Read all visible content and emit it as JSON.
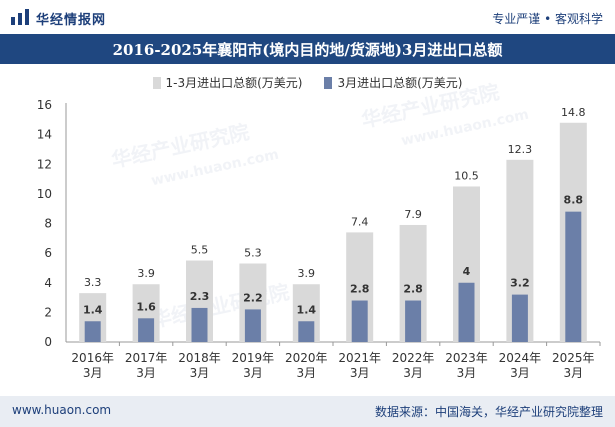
{
  "header": {
    "brand": "华经情报网",
    "slogan": "专业严谨 • 客观科学"
  },
  "watermarks": [
    "华经产业研究院",
    "www.huaon.com"
  ],
  "chart_data": {
    "type": "bar",
    "title": "2016-2025年襄阳市(境内目的地/货源地)3月进出口总额",
    "categories": [
      "2016年3月",
      "2017年3月",
      "2018年3月",
      "2019年3月",
      "2020年3月",
      "2021年3月",
      "2022年3月",
      "2023年3月",
      "2024年3月",
      "2025年3月"
    ],
    "category_lines": [
      [
        "2016年",
        "3月"
      ],
      [
        "2017年",
        "3月"
      ],
      [
        "2018年",
        "3月"
      ],
      [
        "2019年",
        "3月"
      ],
      [
        "2020年",
        "3月"
      ],
      [
        "2021年",
        "3月"
      ],
      [
        "2022年",
        "3月"
      ],
      [
        "2023年",
        "3月"
      ],
      [
        "2024年",
        "3月"
      ],
      [
        "2025年",
        "3月"
      ]
    ],
    "series": [
      {
        "name": "1-3月进出口总额(万美元)",
        "color": "#d9d9d9",
        "values": [
          3.3,
          3.9,
          5.5,
          5.3,
          3.9,
          7.4,
          7.9,
          10.5,
          12.3,
          14.8
        ]
      },
      {
        "name": "3月进出口总额(万美元)",
        "color": "#6b7fa8",
        "values": [
          1.4,
          1.6,
          2.3,
          2.2,
          1.4,
          2.8,
          2.8,
          4,
          3.2,
          8.8
        ]
      }
    ],
    "y_ticks": [
      0,
      2,
      4,
      6,
      8,
      10,
      12,
      14,
      16
    ],
    "ylim": [
      0,
      16
    ],
    "grid": false,
    "legend_position": "top-center"
  },
  "footer": {
    "website": "www.huaon.com",
    "source": "数据来源：中国海关，华经产业研究院整理"
  }
}
